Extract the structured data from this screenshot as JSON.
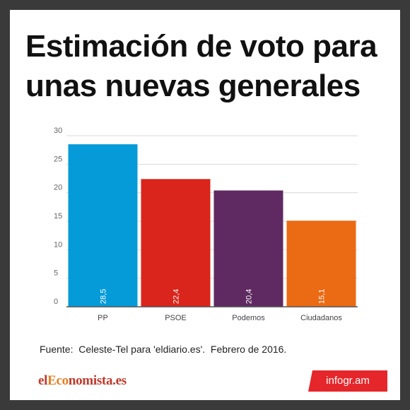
{
  "chart_data": {
    "type": "bar",
    "title": "Estimación de voto para unas nuevas generales",
    "categories": [
      "PP",
      "PSOE",
      "Podemos",
      "Ciudadanos"
    ],
    "values": [
      28.5,
      22.4,
      20.4,
      15.1
    ],
    "value_labels": [
      "28,5",
      "22,4",
      "20,4",
      "15,1"
    ],
    "colors": [
      "#059bd9",
      "#d9251b",
      "#5f2a61",
      "#eb6a14"
    ],
    "y_ticks": [
      0,
      5,
      10,
      15,
      20,
      25,
      30
    ],
    "ylim": [
      0,
      30
    ],
    "xlabel": "",
    "ylabel": "",
    "grid": true,
    "legend": "none"
  },
  "source_text": "Fuente:  Celeste-Tel para 'eldiario.es'.  Febrero de 2016.",
  "logo": {
    "part1": "el",
    "part2": "Eco",
    "part3": "nomista.es"
  },
  "badge": "infogr.am"
}
